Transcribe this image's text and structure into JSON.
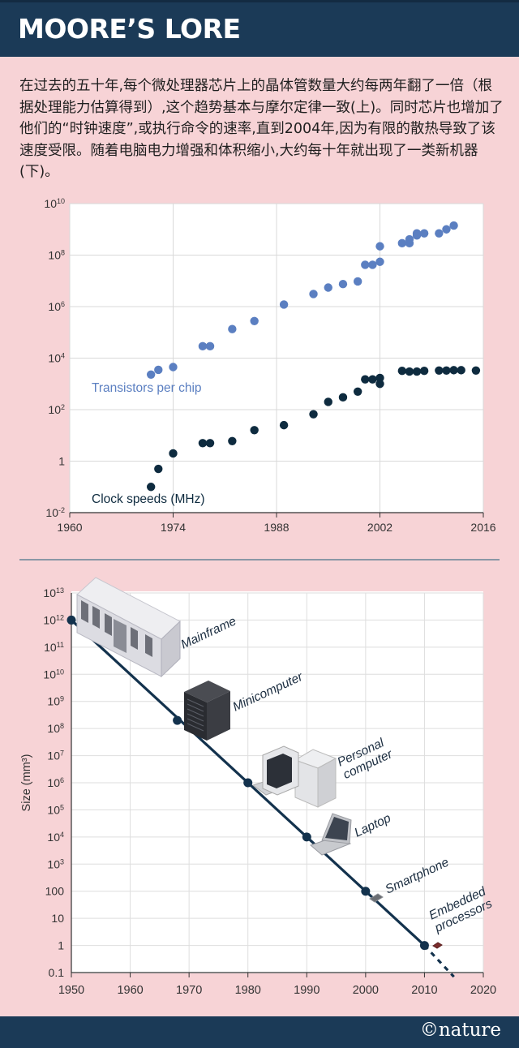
{
  "header": {
    "title": "MOORE’S LORE"
  },
  "intro": "在过去的五十年,每个微处理器芯片上的晶体管数量大约每两年翻了一倍（根据处理能力估算得到）,这个趋势基本与摩尔定律一致(上)。同时芯片也增加了他们的“时钟速度”,或执行命令的速率,直到2004年,因为有限的散热导致了该速度受限。随着电脑电力增强和体积缩小,大约每十年就出现了一类新机器(下)。",
  "footer": {
    "brand": "©nature"
  },
  "colors": {
    "header": "#1b3a57",
    "background": "#f7d3d6",
    "transistors": "#5b7fc1",
    "clock": "#0e2b3f",
    "line": "#13324d"
  },
  "chart_data": [
    {
      "type": "scatter",
      "scale": "log-y",
      "xlim": [
        1960,
        2016
      ],
      "ylim": [
        0.01,
        10000000000
      ],
      "x_ticks": [
        1960,
        1974,
        1988,
        2002,
        2016
      ],
      "y_ticks": [
        {
          "value": 0.01,
          "base": "10",
          "exp": "-2"
        },
        {
          "value": 1,
          "base": "1",
          "exp": ""
        },
        {
          "value": 100,
          "base": "10",
          "exp": "2"
        },
        {
          "value": 10000,
          "base": "10",
          "exp": "4"
        },
        {
          "value": 1000000,
          "base": "10",
          "exp": "6"
        },
        {
          "value": 100000000,
          "base": "10",
          "exp": "8"
        },
        {
          "value": 10000000000,
          "base": "10",
          "exp": "10"
        }
      ],
      "grid": true,
      "series": [
        {
          "name": "Transistors per chip",
          "color": "#5b7fc1",
          "points": [
            [
              1971,
              2300
            ],
            [
              1972,
              3500
            ],
            [
              1974,
              4500
            ],
            [
              1978,
              29000
            ],
            [
              1979,
              29000
            ],
            [
              1982,
              134000
            ],
            [
              1985,
              275000
            ],
            [
              1989,
              1200000
            ],
            [
              1993,
              3100000
            ],
            [
              1995,
              5500000
            ],
            [
              1997,
              7500000
            ],
            [
              1999,
              9500000
            ],
            [
              2000,
              42000000
            ],
            [
              2001,
              42000000
            ],
            [
              2002,
              55000000
            ],
            [
              2002,
              220000000
            ],
            [
              2005,
              290000000
            ],
            [
              2006,
              290000000
            ],
            [
              2006,
              410000000
            ],
            [
              2007,
              580000000
            ],
            [
              2007,
              700000000
            ],
            [
              2008,
              700000000
            ],
            [
              2010,
              700000000
            ],
            [
              2011,
              1000000000
            ],
            [
              2012,
              1400000000
            ]
          ]
        },
        {
          "name": "Clock speeds (MHz)",
          "color": "#0e2b3f",
          "points": [
            [
              1971,
              0.1
            ],
            [
              1972,
              0.5
            ],
            [
              1974,
              2
            ],
            [
              1978,
              5
            ],
            [
              1979,
              5
            ],
            [
              1982,
              6
            ],
            [
              1985,
              16
            ],
            [
              1989,
              25
            ],
            [
              1993,
              66
            ],
            [
              1995,
              200
            ],
            [
              1997,
              300
            ],
            [
              1999,
              500
            ],
            [
              2000,
              1500
            ],
            [
              2001,
              1500
            ],
            [
              2002,
              1000
            ],
            [
              2002,
              1700
            ],
            [
              2005,
              3200
            ],
            [
              2006,
              3000
            ],
            [
              2007,
              3000
            ],
            [
              2008,
              3200
            ],
            [
              2010,
              3300
            ],
            [
              2011,
              3300
            ],
            [
              2012,
              3400
            ],
            [
              2013,
              3400
            ],
            [
              2015,
              3300
            ]
          ]
        }
      ]
    },
    {
      "type": "line",
      "scale": "log-y",
      "xlim": [
        1950,
        2020
      ],
      "ylim": [
        0.1,
        10000000000000
      ],
      "ylabel": "Size (mm³)",
      "x_ticks": [
        1950,
        1960,
        1970,
        1980,
        1990,
        2000,
        2010,
        2020
      ],
      "y_ticks": [
        {
          "value": 0.1,
          "base": "0.1",
          "exp": ""
        },
        {
          "value": 1,
          "base": "1",
          "exp": ""
        },
        {
          "value": 10,
          "base": "10",
          "exp": ""
        },
        {
          "value": 100,
          "base": "100",
          "exp": ""
        },
        {
          "value": 1000,
          "base": "10",
          "exp": "3"
        },
        {
          "value": 10000,
          "base": "10",
          "exp": "4"
        },
        {
          "value": 100000,
          "base": "10",
          "exp": "5"
        },
        {
          "value": 1000000,
          "base": "10",
          "exp": "6"
        },
        {
          "value": 10000000,
          "base": "10",
          "exp": "7"
        },
        {
          "value": 100000000,
          "base": "10",
          "exp": "8"
        },
        {
          "value": 1000000000,
          "base": "10",
          "exp": "9"
        },
        {
          "value": 10000000000,
          "base": "10",
          "exp": "10"
        },
        {
          "value": 100000000000,
          "base": "10",
          "exp": "11"
        },
        {
          "value": 1000000000000,
          "base": "10",
          "exp": "12"
        },
        {
          "value": 10000000000000,
          "base": "10",
          "exp": "13"
        }
      ],
      "grid": true,
      "points": [
        {
          "x": 1950,
          "y": 1000000000000,
          "label": "Mainframe",
          "icon": "mainframe-icon"
        },
        {
          "x": 1968,
          "y": 200000000,
          "label": "Minicomputer",
          "icon": "minicomputer-icon"
        },
        {
          "x": 1980,
          "y": 1000000,
          "label": "Personal computer",
          "icon": "personal-computer-icon"
        },
        {
          "x": 1990,
          "y": 10000,
          "label": "Laptop",
          "icon": "laptop-icon"
        },
        {
          "x": 2000,
          "y": 100,
          "label": "Smartphone",
          "icon": "smartphone-icon"
        },
        {
          "x": 2010,
          "y": 1,
          "label": "Embedded processors",
          "icon": "chip-icon"
        }
      ],
      "extrapolation": [
        [
          2010,
          1
        ],
        [
          2015,
          0.07
        ]
      ]
    }
  ]
}
